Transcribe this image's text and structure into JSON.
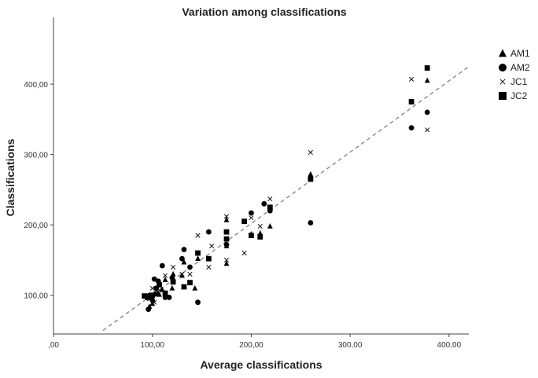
{
  "chart_data": {
    "type": "scatter",
    "title": "Variation among classifications",
    "xlabel": "Average classifications",
    "ylabel": "Classifications",
    "xlim": [
      0,
      420
    ],
    "ylim": [
      45,
      495
    ],
    "x_ticks": [
      0,
      100,
      200,
      300,
      400
    ],
    "x_tick_labels": [
      ",00",
      "100,00",
      "200,00",
      "300,00",
      "400,00"
    ],
    "y_ticks": [
      100,
      200,
      300,
      400
    ],
    "y_tick_labels": [
      "100,00",
      "200,00",
      "300,00",
      "400,00"
    ],
    "reference_line": {
      "style": "dashed",
      "color": "#808080",
      "x": [
        50,
        420
      ],
      "y": [
        50,
        425
      ]
    },
    "legend_position": "top-right",
    "series": [
      {
        "name": "AM1",
        "marker": "triangle",
        "points": [
          [
            260,
            272
          ],
          [
            378,
            405
          ],
          [
            219,
            198
          ],
          [
            209,
            188
          ],
          [
            200,
            187
          ],
          [
            175,
            145
          ],
          [
            175,
            207
          ],
          [
            175,
            170
          ],
          [
            146,
            152
          ],
          [
            143,
            110
          ],
          [
            132,
            147
          ],
          [
            130,
            128
          ],
          [
            121,
            130
          ],
          [
            113,
            122
          ],
          [
            110,
            108
          ],
          [
            107,
            101
          ],
          [
            100,
            88
          ],
          [
            97,
            84
          ],
          [
            95,
            97
          ],
          [
            120,
            110
          ]
        ]
      },
      {
        "name": "AM2",
        "marker": "circle",
        "points": [
          [
            378,
            360
          ],
          [
            362,
            338
          ],
          [
            260,
            203
          ],
          [
            260,
            267
          ],
          [
            219,
            220
          ],
          [
            213,
            230
          ],
          [
            200,
            217
          ],
          [
            175,
            172
          ],
          [
            157,
            190
          ],
          [
            146,
            90
          ],
          [
            138,
            140
          ],
          [
            132,
            165
          ],
          [
            130,
            152
          ],
          [
            120,
            125
          ],
          [
            117,
            97
          ],
          [
            113,
            97
          ],
          [
            110,
            142
          ],
          [
            106,
            120
          ],
          [
            102,
            123
          ],
          [
            100,
            93
          ],
          [
            97,
            100
          ],
          [
            96,
            80
          ],
          [
            104,
            110
          ]
        ]
      },
      {
        "name": "JC1",
        "marker": "x",
        "points": [
          [
            260,
            303
          ],
          [
            362,
            407
          ],
          [
            378,
            335
          ],
          [
            219,
            237
          ],
          [
            209,
            198
          ],
          [
            200,
            210
          ],
          [
            193,
            160
          ],
          [
            175,
            212
          ],
          [
            175,
            150
          ],
          [
            157,
            140
          ],
          [
            146,
            185
          ],
          [
            138,
            130
          ],
          [
            130,
            130
          ],
          [
            121,
            140
          ],
          [
            113,
            128
          ],
          [
            107,
            107
          ],
          [
            100,
            110
          ],
          [
            97,
            95
          ],
          [
            102,
            90
          ],
          [
            160,
            170
          ]
        ]
      },
      {
        "name": "JC2",
        "marker": "square",
        "points": [
          [
            378,
            423
          ],
          [
            362,
            375
          ],
          [
            260,
            265
          ],
          [
            219,
            225
          ],
          [
            209,
            183
          ],
          [
            200,
            185
          ],
          [
            193,
            205
          ],
          [
            175,
            190
          ],
          [
            175,
            180
          ],
          [
            157,
            152
          ],
          [
            146,
            160
          ],
          [
            138,
            118
          ],
          [
            132,
            112
          ],
          [
            121,
            119
          ],
          [
            113,
            103
          ],
          [
            107,
            115
          ],
          [
            100,
            100
          ],
          [
            96,
            97
          ],
          [
            104,
            102
          ],
          [
            92,
            99
          ]
        ]
      }
    ]
  }
}
